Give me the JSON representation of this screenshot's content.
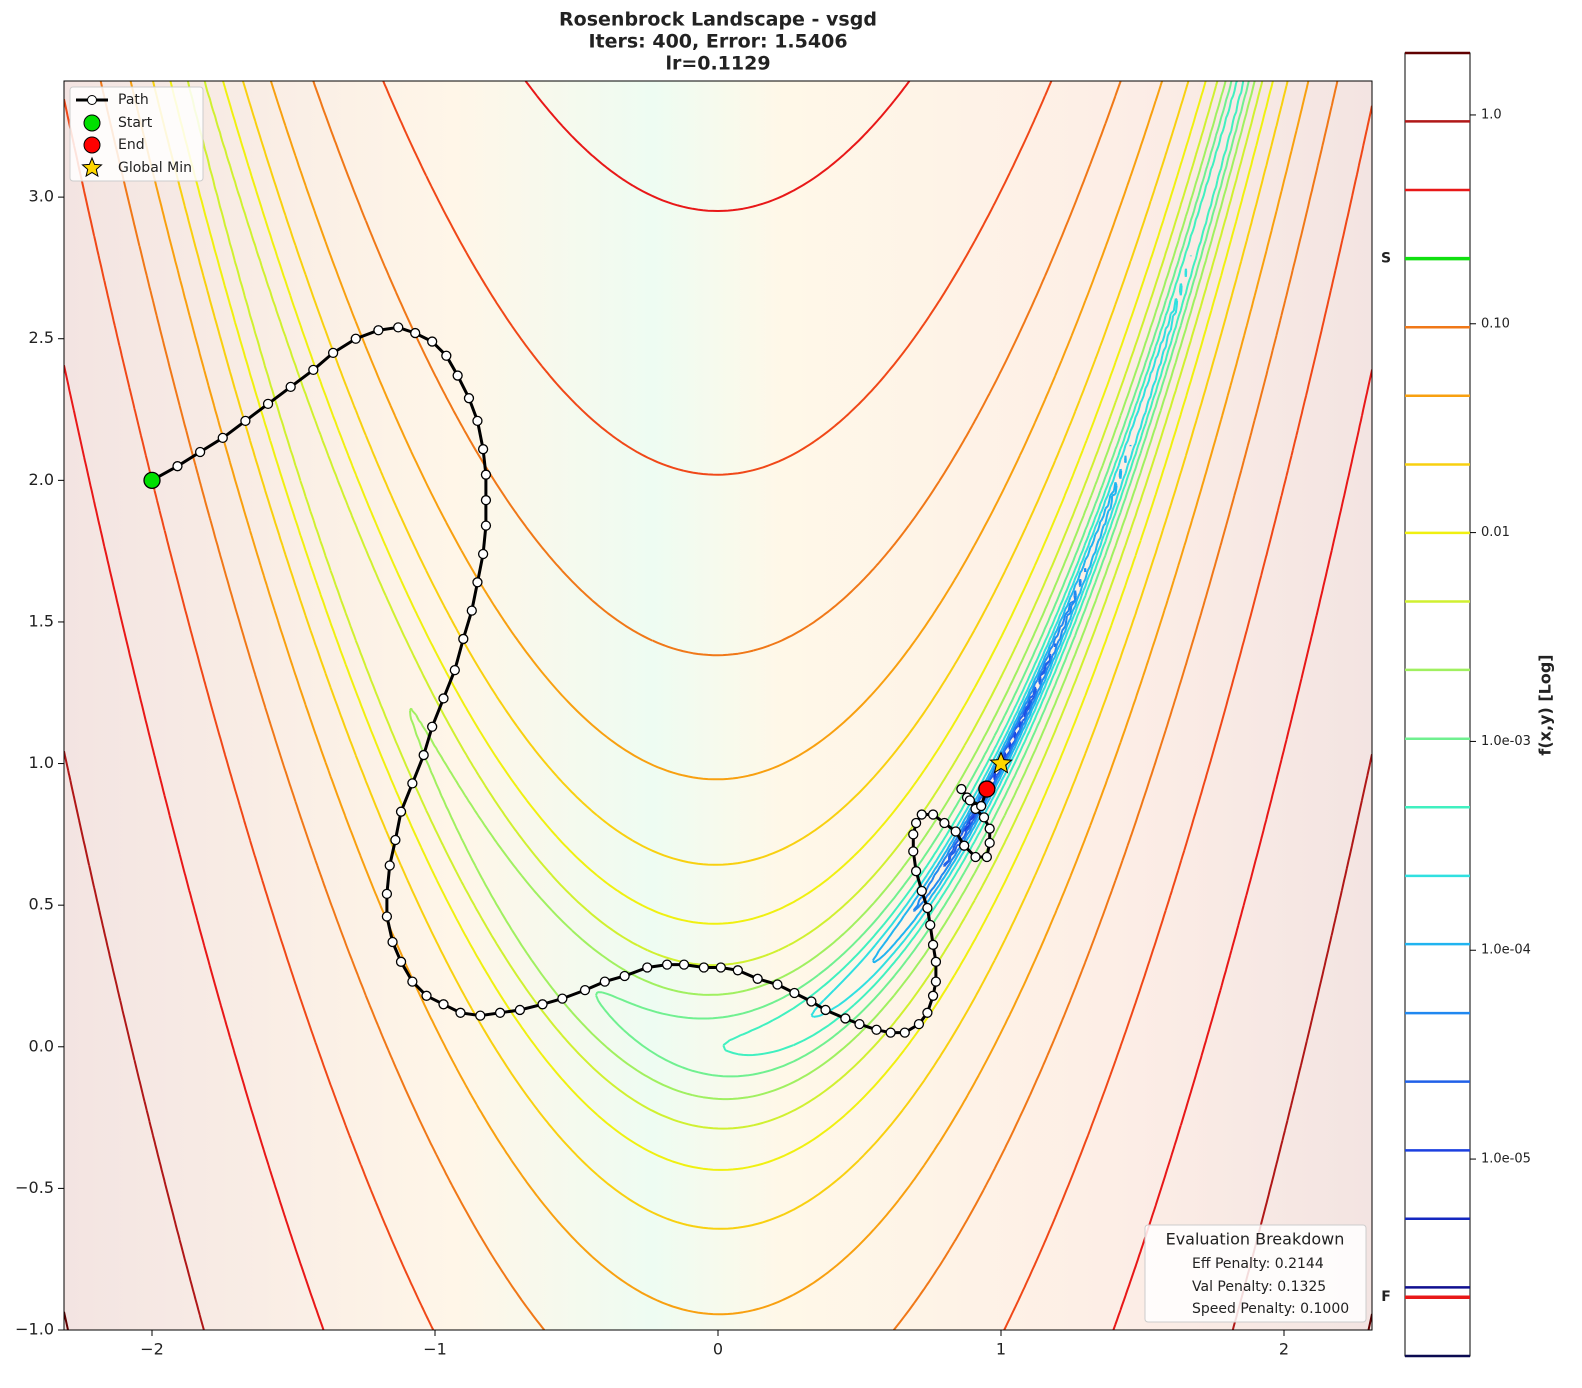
{
  "chart_data": {
    "type": "contour",
    "title": [
      "Rosenbrock Landscape - vsgd",
      "Iters: 400, Error: 1.5406",
      "lr=0.1129"
    ],
    "xlim": [
      -2.311,
      2.311
    ],
    "ylim": [
      -1.0,
      3.41
    ],
    "xticks": [
      {
        "value": -2,
        "label": "−2"
      },
      {
        "value": -1,
        "label": "−1"
      },
      0,
      1,
      2
    ],
    "yticks": [
      {
        "value": -1.0,
        "label": "−1.0"
      },
      {
        "value": -0.5,
        "label": "−0.5"
      },
      {
        "value": 0.0,
        "label": "0.0"
      },
      {
        "value": 0.5,
        "label": "0.5"
      },
      {
        "value": 1.0,
        "label": "1.0"
      },
      {
        "value": 1.5,
        "label": "1.5"
      },
      {
        "value": 2.0,
        "label": "2.0"
      },
      {
        "value": 2.5,
        "label": "2.5"
      },
      {
        "value": 3.0,
        "label": "3.0"
      }
    ],
    "levels": [
      1.14e-06,
      2.43e-06,
      5.18e-06,
      1.1e-05,
      2.35e-05,
      5e-05,
      0.000107,
      0.000227,
      0.000484,
      0.00103,
      0.0022,
      0.00468,
      0.00997,
      0.0212,
      0.0452,
      0.0963,
      0.205,
      0.437,
      0.931,
      1.98
    ],
    "level_colors": [
      "#0a0a50",
      "#101090",
      "#1428c0",
      "#1c40e0",
      "#2060e8",
      "#2088f0",
      "#20b4f0",
      "#30e0e0",
      "#40f0c0",
      "#70f090",
      "#a0f060",
      "#d0f030",
      "#f0f010",
      "#f8d010",
      "#f8a010",
      "#f07818",
      "#f04818",
      "#e81818",
      "#b01818",
      "#600000"
    ],
    "colorbar": {
      "label": "f(x,y) [Log]",
      "log": true,
      "lim": [
        1.14e-06,
        1.98
      ],
      "ticks": [
        {
          "value": 1.0,
          "label": "1.0"
        },
        {
          "value": 0.1,
          "label": "0.10"
        },
        0.01,
        {
          "value": 0.001,
          "label": "1.0e-03"
        },
        {
          "value": 0.0001,
          "label": "1.0e-04"
        },
        {
          "value": 1e-05,
          "label": "1.0e-05"
        }
      ],
      "markers": [
        {
          "label": "S",
          "value": 0.205,
          "color": "#10e010"
        },
        {
          "label": "F",
          "value": 2.18e-06,
          "color": "#e81818"
        }
      ]
    },
    "path": {
      "name": "Path",
      "x": [
        -2.0,
        -1.91,
        -1.83,
        -1.75,
        -1.67,
        -1.59,
        -1.51,
        -1.43,
        -1.36,
        -1.28,
        -1.2,
        -1.13,
        -1.07,
        -1.01,
        -0.96,
        -0.92,
        -0.88,
        -0.85,
        -0.83,
        -0.82,
        -0.82,
        -0.82,
        -0.83,
        -0.85,
        -0.87,
        -0.9,
        -0.93,
        -0.97,
        -1.01,
        -1.04,
        -1.08,
        -1.12,
        -1.14,
        -1.16,
        -1.17,
        -1.17,
        -1.15,
        -1.12,
        -1.08,
        -1.03,
        -0.97,
        -0.91,
        -0.84,
        -0.77,
        -0.7,
        -0.62,
        -0.55,
        -0.47,
        -0.4,
        -0.33,
        -0.25,
        -0.18,
        -0.12,
        -0.05,
        0.01,
        0.07,
        0.14,
        0.21,
        0.27,
        0.33,
        0.38,
        0.45,
        0.5,
        0.56,
        0.61,
        0.66,
        0.71,
        0.74,
        0.76,
        0.77,
        0.77,
        0.76,
        0.75,
        0.74,
        0.72,
        0.7,
        0.69,
        0.69,
        0.7,
        0.72,
        0.76,
        0.8,
        0.84,
        0.87,
        0.91,
        0.95,
        0.96,
        0.96,
        0.94,
        0.91,
        0.88,
        0.86,
        0.89,
        0.93,
        0.95
      ],
      "y": [
        2.0,
        2.05,
        2.1,
        2.15,
        2.21,
        2.27,
        2.33,
        2.39,
        2.45,
        2.5,
        2.53,
        2.54,
        2.52,
        2.49,
        2.44,
        2.37,
        2.29,
        2.21,
        2.11,
        2.02,
        1.93,
        1.84,
        1.74,
        1.64,
        1.54,
        1.44,
        1.33,
        1.23,
        1.13,
        1.03,
        0.93,
        0.83,
        0.73,
        0.64,
        0.54,
        0.46,
        0.37,
        0.3,
        0.23,
        0.18,
        0.15,
        0.12,
        0.11,
        0.12,
        0.13,
        0.15,
        0.17,
        0.2,
        0.23,
        0.25,
        0.28,
        0.29,
        0.29,
        0.28,
        0.28,
        0.27,
        0.24,
        0.22,
        0.19,
        0.16,
        0.13,
        0.1,
        0.08,
        0.06,
        0.05,
        0.05,
        0.08,
        0.12,
        0.18,
        0.23,
        0.3,
        0.36,
        0.43,
        0.49,
        0.55,
        0.62,
        0.69,
        0.75,
        0.79,
        0.82,
        0.82,
        0.79,
        0.76,
        0.71,
        0.67,
        0.67,
        0.72,
        0.77,
        0.81,
        0.84,
        0.88,
        0.91,
        0.87,
        0.85,
        0.91
      ]
    },
    "points": [
      {
        "name": "Start",
        "x": -2.0,
        "y": 2.0,
        "color": "#00e000",
        "marker": "circle"
      },
      {
        "name": "End",
        "x": 0.95,
        "y": 0.91,
        "color": "#ff0000",
        "marker": "circle"
      },
      {
        "name": "Global Min",
        "x": 1.0,
        "y": 1.0,
        "color": "#ffd700",
        "marker": "star"
      }
    ],
    "legend": "upper left",
    "breakdown": {
      "title": "Evaluation Breakdown",
      "lines": [
        "Eff Penalty: 0.2144",
        "Val Penalty: 0.1325",
        "Speed Penalty: 0.1000"
      ]
    }
  }
}
